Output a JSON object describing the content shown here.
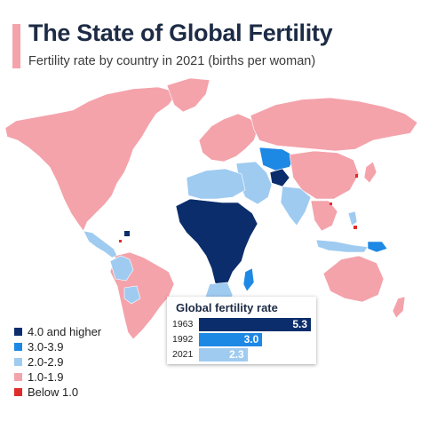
{
  "title": "The State of Global Fertility",
  "subtitle": "Fertility rate by country in 2021 (births per woman)",
  "colors": {
    "cat4plus": "#0b2d6b",
    "cat3": "#1e88e5",
    "cat2": "#9fcbf1",
    "cat1": "#f4a3ab",
    "below1": "#e02b2b",
    "ocean": "#ffffff"
  },
  "legend": [
    {
      "label": "4.0 and higher",
      "color": "#0b2d6b"
    },
    {
      "label": "3.0-3.9",
      "color": "#1e88e5"
    },
    {
      "label": "2.0-2.9",
      "color": "#9fcbf1"
    },
    {
      "label": "1.0-1.9",
      "color": "#f4a3ab"
    },
    {
      "label": "Below 1.0",
      "color": "#e02b2b"
    }
  ],
  "global_fertility": {
    "title": "Global fertility rate",
    "rows": [
      {
        "year": "1963",
        "value": 5.3,
        "value_label": "5.3",
        "color": "#0b2d6b"
      },
      {
        "year": "1992",
        "value": 3.0,
        "value_label": "3.0",
        "color": "#1e88e5"
      },
      {
        "year": "2021",
        "value": 2.3,
        "value_label": "2.3",
        "color": "#9fcbf1"
      }
    ]
  }
}
